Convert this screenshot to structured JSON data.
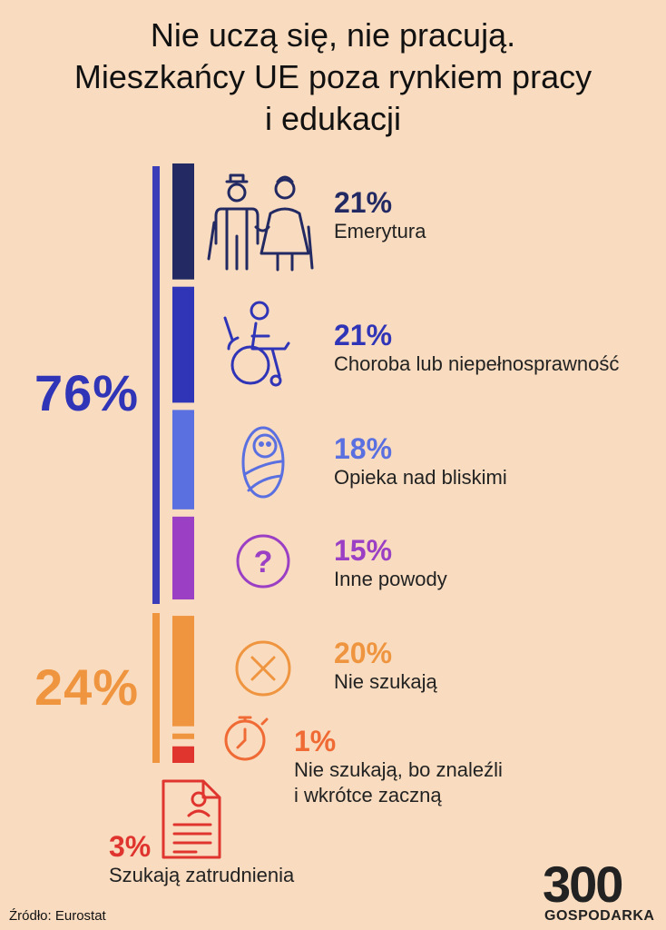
{
  "title_line1": "Nie uczą się, nie pracują.",
  "title_line2": "Mieszkańcy UE poza rynkiem pracy",
  "title_line3": "i edukacji",
  "groups": {
    "inactive_total": "76%",
    "unemployed_total": "24%"
  },
  "source": "Źródło: Eurostat",
  "logo": {
    "digits": "300",
    "name": "GOSPODARKA"
  },
  "colors": {
    "background": "#f9dcbf",
    "navy": "#232a63",
    "blue": "#3035b8",
    "periwinkle": "#5a6fe0",
    "purple": "#9b3fc4",
    "orange": "#ef9540",
    "red": "#e0352f"
  },
  "items": [
    {
      "pct": "21%",
      "label": "Emerytura",
      "icon": "elderly-couple-icon"
    },
    {
      "pct": "21%",
      "label": "Choroba lub niepełnosprawność",
      "icon": "wheelchair-icon"
    },
    {
      "pct": "18%",
      "label": "Opieka nad bliskimi",
      "icon": "swaddled-baby-icon"
    },
    {
      "pct": "15%",
      "label": "Inne powody",
      "icon": "question-mark-icon"
    },
    {
      "pct": "20%",
      "label": "Nie szukają",
      "icon": "cross-circle-icon"
    },
    {
      "pct": "1%",
      "label_line1": "Nie szukają, bo znaleźli",
      "label_line2": "i wkrótce zaczną",
      "icon": "stopwatch-icon"
    },
    {
      "pct": "3%",
      "label": "Szukają zatrudnienia",
      "icon": "cv-document-icon"
    }
  ],
  "chart_data": {
    "type": "bar",
    "orientation": "stacked-vertical",
    "categories": [
      "Emerytura",
      "Choroba lub niepełnosprawność",
      "Opieka nad bliskimi",
      "Inne powody",
      "Nie szukają",
      "Nie szukają, bo znaleźli i wkrótce zaczną",
      "Szukają zatrudnienia"
    ],
    "values": [
      21,
      21,
      18,
      15,
      20,
      1,
      3
    ],
    "colors": [
      "#232a63",
      "#3035b8",
      "#5a6fe0",
      "#9b3fc4",
      "#ef9540",
      "#ef9540",
      "#e0352f"
    ],
    "groups": [
      {
        "value": 76,
        "members": [
          0,
          1,
          2,
          3
        ]
      },
      {
        "value": 24,
        "members": [
          4,
          5,
          6
        ]
      }
    ],
    "unit": "%"
  }
}
